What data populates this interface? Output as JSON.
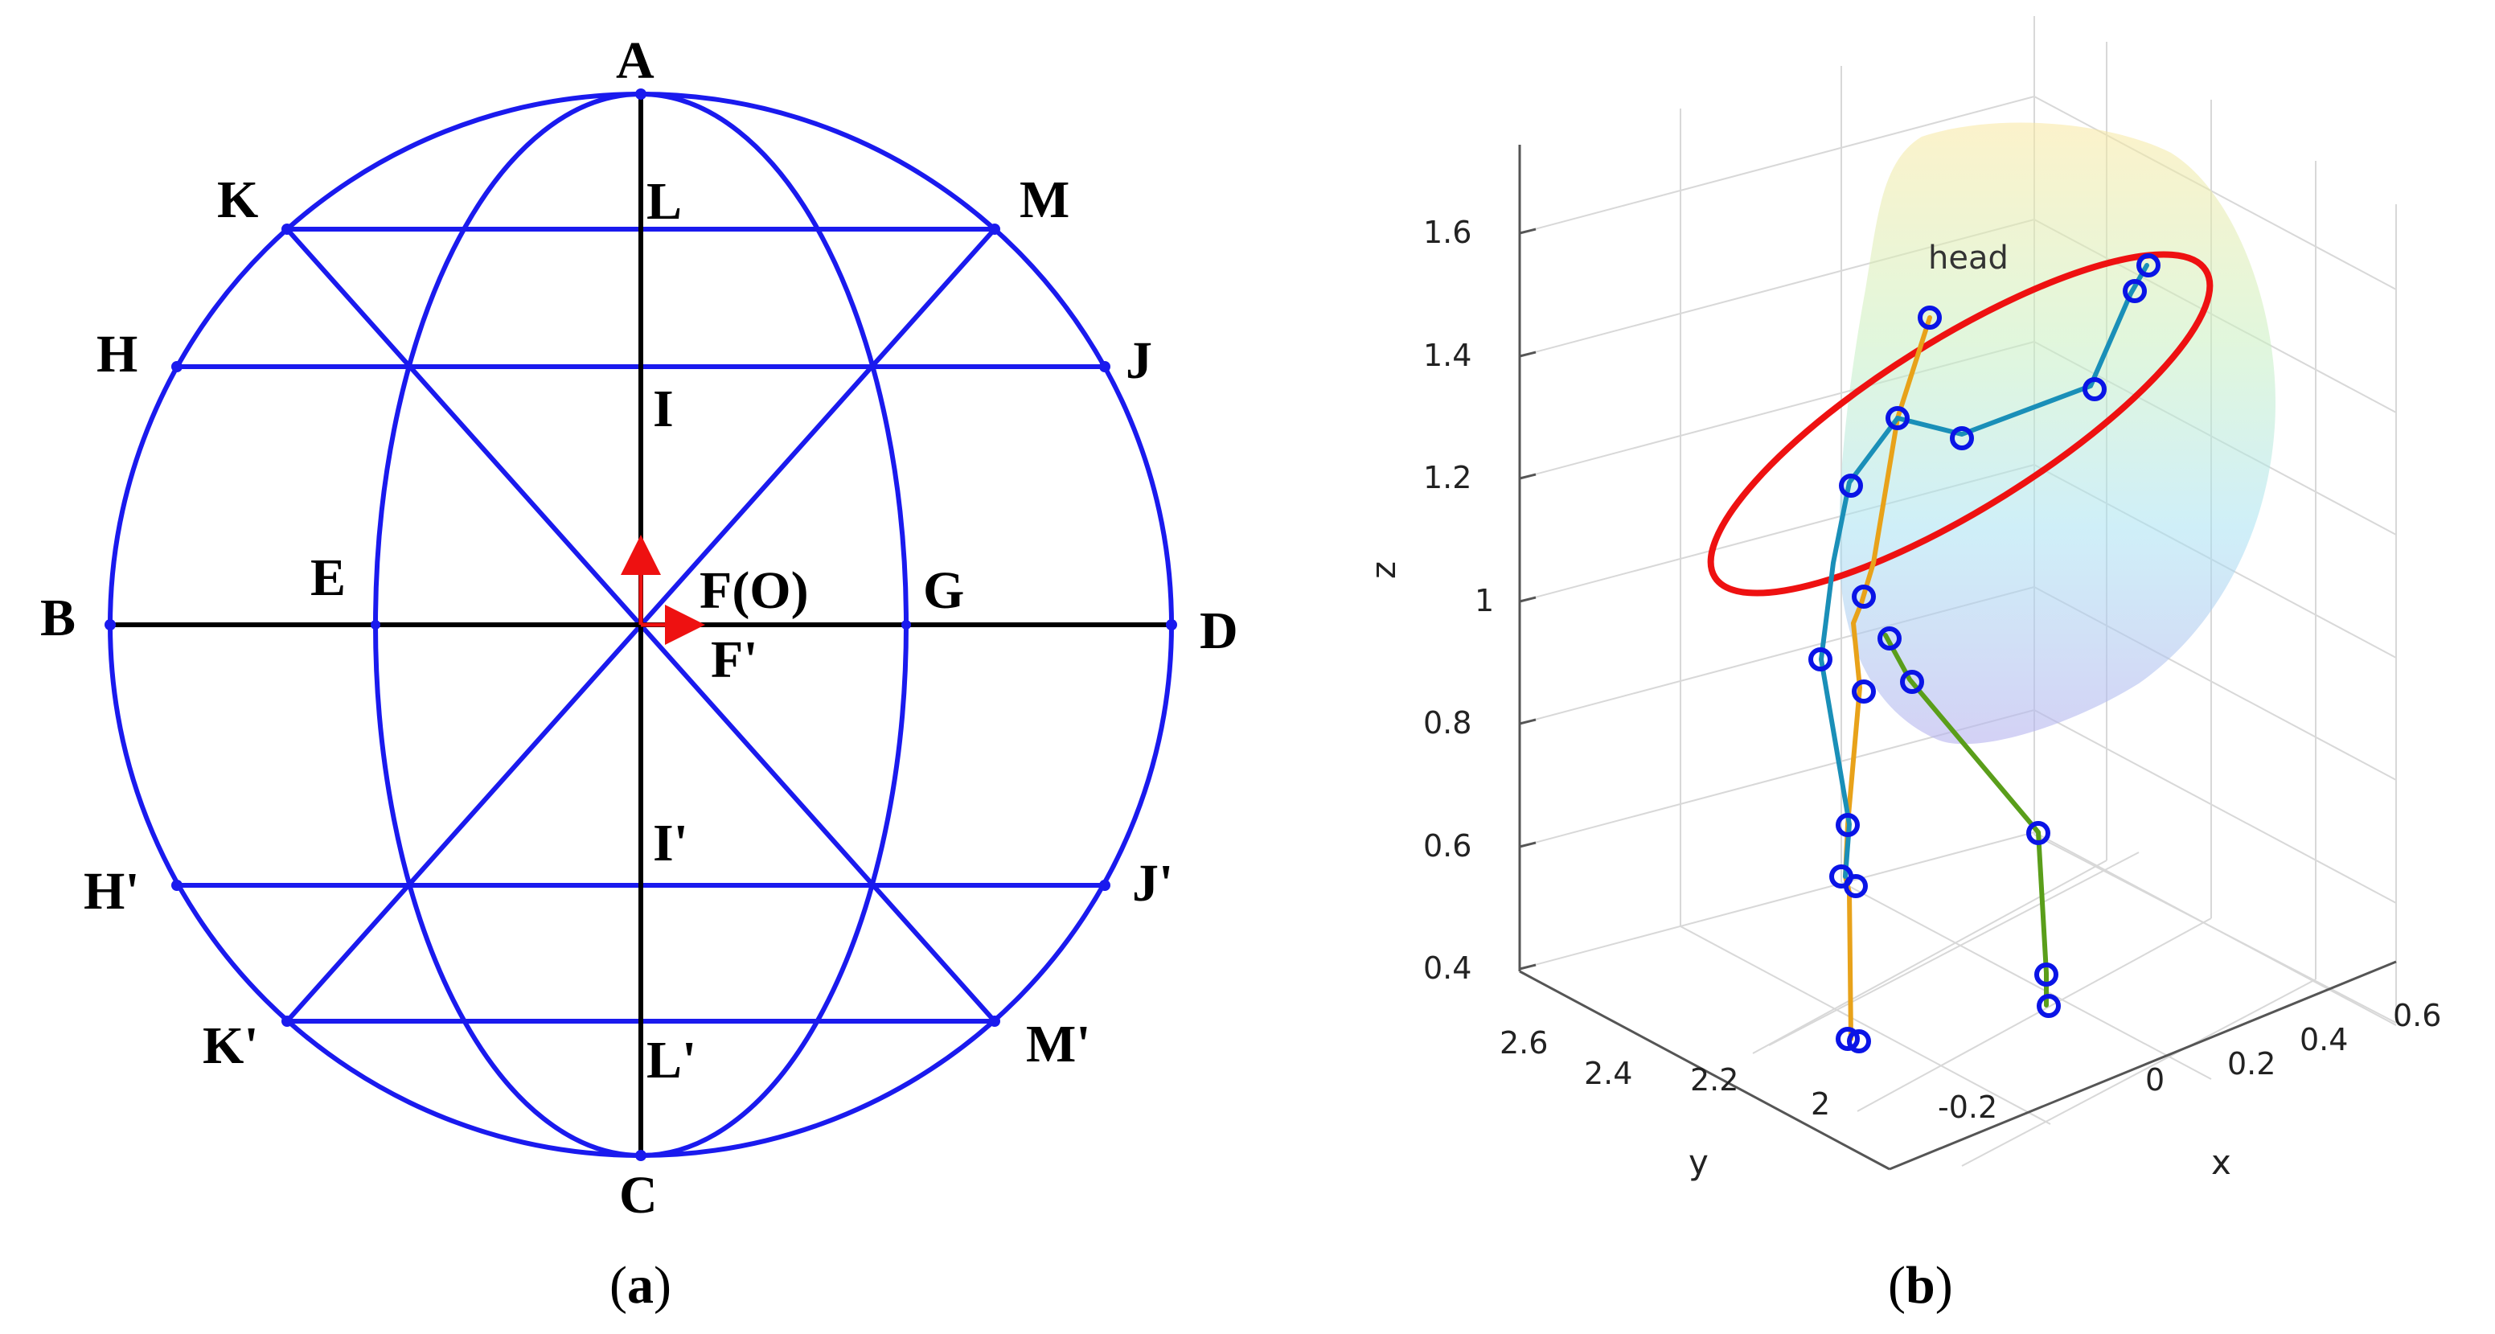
{
  "panel_a": {
    "points": {
      "A": "A",
      "B": "B",
      "C": "C",
      "D": "D",
      "E": "E",
      "FO": "F(O)",
      "Fp": "F'",
      "G": "G",
      "H": "H",
      "I": "I",
      "J": "J",
      "K": "K",
      "L": "L",
      "M": "M",
      "Hp": "H'",
      "Ip": "I'",
      "Jp": "J'",
      "Kp": "K'",
      "Lp": "L'",
      "Mp": "M'"
    },
    "caption_paren_open": "(",
    "caption_letter": "a",
    "caption_paren_close": ")",
    "colors": {
      "grid": "#1a1aee",
      "axis": "#000000",
      "arrow": "#ee1111"
    }
  },
  "panel_b": {
    "axes": {
      "z_label": "z",
      "y_label": "y",
      "x_label": "x",
      "z_ticks": [
        "1.6",
        "1.4",
        "1.2",
        "1",
        "0.8",
        "0.6",
        "0.4"
      ],
      "y_ticks": [
        "2.6",
        "2.4",
        "2.2",
        "2"
      ],
      "x_ticks": [
        "-0.2",
        "0",
        "0.2",
        "0.4",
        "0.6"
      ]
    },
    "annotation": "head",
    "caption_paren_open": "(",
    "caption_letter": "b",
    "caption_paren_close": ")",
    "colors": {
      "marker": "#0a14e6",
      "ellipse": "#ee1111",
      "spine": "#e8a21a",
      "arm": "#1a8fb8",
      "leg": "#5a9e1a"
    }
  }
}
